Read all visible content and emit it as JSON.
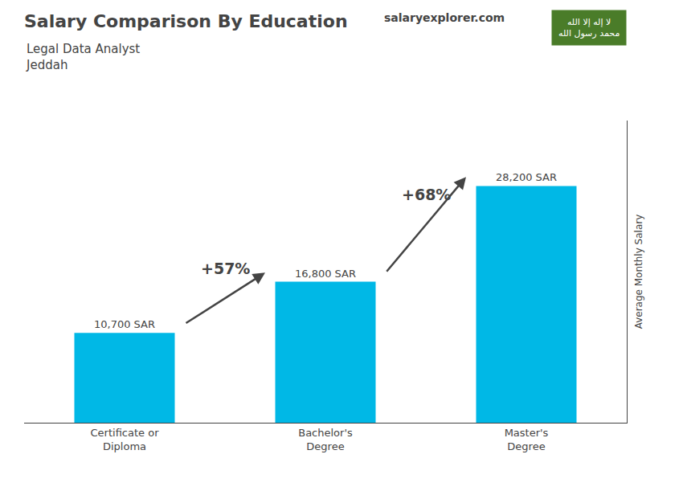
{
  "chart_data": {
    "type": "bar",
    "title": "Salary Comparison By Education",
    "subtitle": [
      "Legal Data Analyst",
      "Jeddah"
    ],
    "ylabel": "Average Monthly Salary",
    "categories": [
      "Certificate or\nDiploma",
      "Bachelor's\nDegree",
      "Master's\nDegree"
    ],
    "values": [
      10700,
      16800,
      28200
    ],
    "value_labels": [
      "10,700 SAR",
      "16,800 SAR",
      "28,200 SAR"
    ],
    "data_labels": true,
    "color": "#00b8e6",
    "ylim": [
      0,
      36000
    ],
    "grid": false,
    "tick_labels": "x",
    "annotations": [
      {
        "text": "+57%",
        "between": [
          "Certificate or\nDiploma",
          "Bachelor's\nDegree"
        ]
      },
      {
        "text": "+68%",
        "between": [
          "Bachelor's\nDegree",
          "Master's\nDegree"
        ]
      },
      {
        "text": "salaryexplorer.com"
      },
      {
        "text": [
          "لا إله إلا الله",
          "محمد رسول الله"
        ],
        "color": "#4a7c29"
      }
    ]
  }
}
